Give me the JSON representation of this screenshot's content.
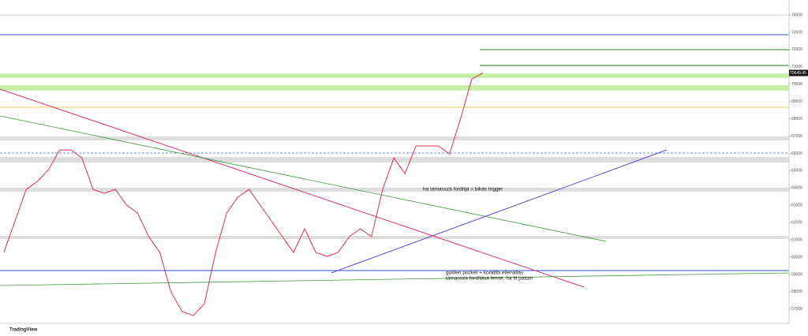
{
  "chart_data": {
    "type": "line",
    "color": "#e0304a",
    "values": [
      60270,
      62100,
      63920,
      64380,
      65060,
      66200,
      66200,
      65740,
      63920,
      63690,
      63920,
      63010,
      62550,
      61180,
      60270,
      57990,
      56850,
      56620,
      57310,
      60270,
      62550,
      63460,
      63920,
      63010,
      62100,
      61180,
      60270,
      61640,
      60270,
      60040,
      60270,
      61180,
      61640,
      61180,
      63920,
      65740,
      64830,
      66430,
      66430,
      66430,
      65970,
      68020,
      70300,
      70650
    ],
    "ylim": [
      56170,
      74640
    ],
    "yticks": [
      57000,
      58000,
      59000,
      60000,
      61000,
      62000,
      63000,
      64000,
      65000,
      66000,
      67000,
      68000,
      69000,
      70000,
      71000,
      72000,
      73000,
      74000
    ],
    "grid": false,
    "last_price": 70649.45,
    "annotations": [
      "ha támasszá fordítja = bikás trigger",
      "golden pocket + korábbi ellenállás",
      "támasszá fordítása lenne, ha itt pattan"
    ],
    "logo": "TradingView"
  }
}
